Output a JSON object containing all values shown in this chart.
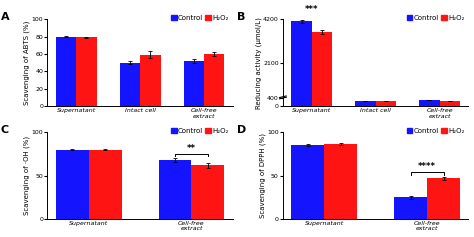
{
  "A": {
    "label": "A",
    "ylabel": "Scavenging of ABTS (%)",
    "ylim": [
      0,
      100
    ],
    "yticks": [
      0,
      20,
      40,
      60,
      80,
      100
    ],
    "groups": [
      "Supernatant",
      "Intact cell",
      "Cell-free\nextract"
    ],
    "control": [
      80,
      50,
      52
    ],
    "h2o2": [
      79,
      59,
      60
    ],
    "control_err": [
      1,
      2,
      2
    ],
    "h2o2_err": [
      1,
      4,
      2
    ],
    "sig_pos": [],
    "sig_text": []
  },
  "B": {
    "label": "B",
    "ylabel": "Reducing activity (μmol/L)",
    "ylim": [
      0,
      4200
    ],
    "yticks": [
      0,
      400,
      2100,
      4200
    ],
    "yticklabels": [
      "0",
      "400",
      "2100",
      "4200"
    ],
    "groups": [
      "Supernatant",
      "Intact cell",
      "Cell-free\nextract"
    ],
    "control": [
      4100,
      250,
      310
    ],
    "h2o2": [
      3600,
      245,
      265
    ],
    "control_err": [
      80,
      8,
      15
    ],
    "h2o2_err": [
      100,
      8,
      10
    ],
    "sig_pos": [
      0
    ],
    "sig_text": [
      "***"
    ]
  },
  "C": {
    "label": "C",
    "ylabel": "Scavenging of ·OH (%)",
    "ylim": [
      0,
      100
    ],
    "yticks": [
      0,
      50,
      100
    ],
    "groups": [
      "Supernatant",
      "Cell-free\nextract"
    ],
    "control": [
      80,
      68
    ],
    "h2o2": [
      80,
      62
    ],
    "control_err": [
      1,
      2
    ],
    "h2o2_err": [
      1,
      3
    ],
    "sig_pos": [
      1
    ],
    "sig_text": [
      "**"
    ]
  },
  "D": {
    "label": "D",
    "ylabel": "Scavenging of DPPH (%)",
    "ylim": [
      0,
      100
    ],
    "yticks": [
      0,
      50,
      100
    ],
    "groups": [
      "Supernatant",
      "Cell-free\nextract"
    ],
    "control": [
      85,
      25
    ],
    "h2o2": [
      86,
      47
    ],
    "control_err": [
      1,
      2
    ],
    "h2o2_err": [
      1,
      2
    ],
    "sig_pos": [
      1
    ],
    "sig_text": [
      "****"
    ]
  },
  "bar_width": 0.32,
  "control_color": "#1414FF",
  "h2o2_color": "#FF1414",
  "background_color": "#FFFFFF",
  "legend_control": "Control",
  "legend_h2o2": "H₂O₂",
  "panel_label_fontsize": 8,
  "label_fontsize": 5,
  "tick_fontsize": 4.5,
  "legend_fontsize": 5
}
